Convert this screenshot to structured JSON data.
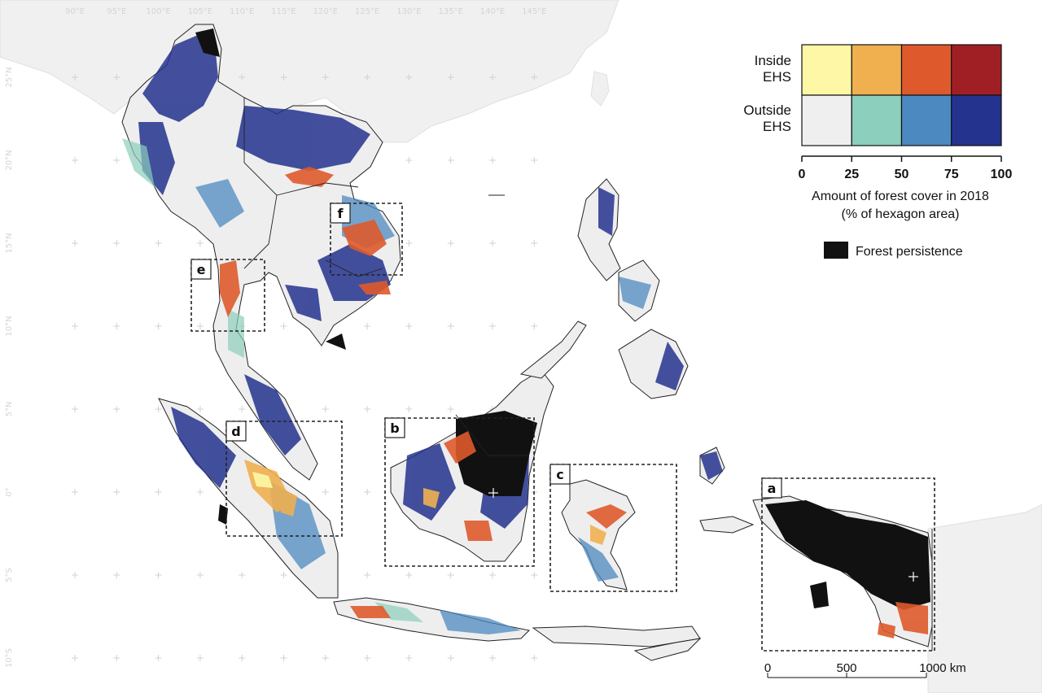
{
  "graticule": {
    "lon_labels": [
      "90°E",
      "95°E",
      "100°E",
      "105°E",
      "110°E",
      "115°E",
      "120°E",
      "125°E",
      "130°E",
      "135°E",
      "140°E",
      "145°E"
    ],
    "lat_labels": [
      "25°N",
      "20°N",
      "15°N",
      "10°N",
      "5°N",
      "0°",
      "5°S",
      "10°S"
    ]
  },
  "insets": [
    "a",
    "b",
    "c",
    "d",
    "e",
    "f"
  ],
  "legend": {
    "rows": [
      "Inside EHS",
      "Outside EHS"
    ],
    "inside_colors": [
      "#fdf7a6",
      "#f0b050",
      "#de5a2c",
      "#a01f24"
    ],
    "outside_colors": [
      "#efefef",
      "#8bcfbc",
      "#4c89c0",
      "#24338e"
    ],
    "ticks": [
      "0",
      "25",
      "50",
      "75",
      "100"
    ],
    "caption_line1": "Amount of forest cover in 2018",
    "caption_line2": "(% of hexagon area)",
    "persistence_label": "Forest persistence",
    "persistence_color": "#111111"
  },
  "scale_bar": {
    "labels": [
      "0",
      "500",
      "1000 km"
    ]
  },
  "colors": {
    "land_background": "#eeeeee",
    "regional_land": "#f0f0f0",
    "border": "#222222"
  }
}
